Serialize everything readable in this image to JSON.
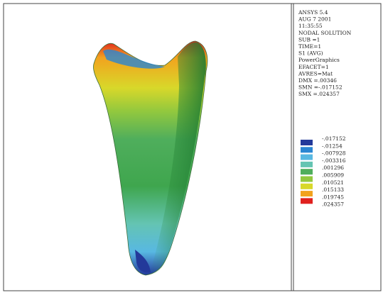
{
  "info": [
    "ANSYS 5.4",
    "AUG  7 2001",
    "11:35:55",
    "NODAL SOLUTION",
    "SUB =1",
    "TIME=1",
    "S1       (AVG)",
    "PowerGraphics",
    "EFACET=1",
    "AVRES=Mat",
    "DMX =.00346",
    "SMN =-.017152",
    "SMX =.024357"
  ],
  "legend": {
    "labels": [
      "-.017152",
      "-.01254",
      "-.007928",
      "-.003316",
      ".001296",
      ".005909",
      ".010521",
      ".015133",
      ".019745",
      ".024357"
    ],
    "colors": [
      "#23399a",
      "#2b86d2",
      "#58b8e2",
      "#64c4b2",
      "#4fae5c",
      "#92c83e",
      "#d8d82a",
      "#f2a21e",
      "#e0201e"
    ]
  }
}
